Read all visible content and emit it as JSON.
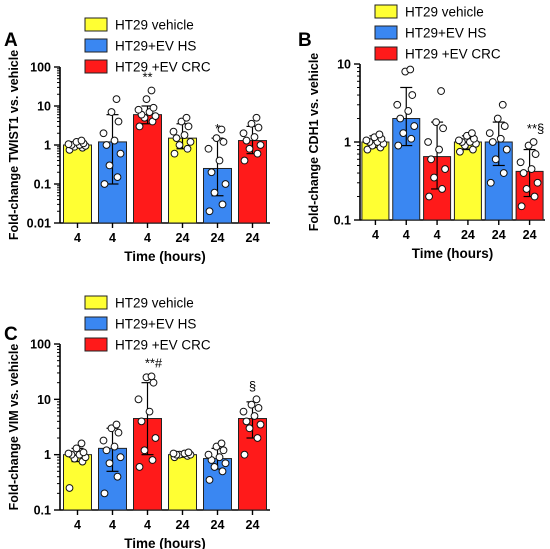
{
  "colors": {
    "yellow": "#ffff33",
    "blue": "#3a87f2",
    "red": "#ff1a1a"
  },
  "chart_data": [
    {
      "panel": "A",
      "type": "bar",
      "scale": "log",
      "ylabel": "Fold-change TWIST1 vs. vehicle",
      "xlabel": "Time (hours)",
      "ylim": [
        0.01,
        100
      ],
      "yticks": [
        {
          "value": 0.01,
          "label": "0.01"
        },
        {
          "value": 0.1,
          "label": "0.1"
        },
        {
          "value": 1,
          "label": "1"
        },
        {
          "value": 10,
          "label": "10"
        },
        {
          "value": 100,
          "label": "100"
        }
      ],
      "legend": [
        "HT29 vehicle",
        "HT29+EV HS",
        "HT29 +EV CRC"
      ],
      "legend_position": "top",
      "bars": [
        {
          "category": "4",
          "group": 0,
          "value": 1.0,
          "err": [
            0.85,
            1.2
          ],
          "annotation": "",
          "points": [
            0.75,
            0.85,
            0.9,
            0.95,
            1.0,
            1.0,
            1.05,
            1.1,
            1.2,
            1.3
          ]
        },
        {
          "category": "4",
          "group": 1,
          "value": 1.2,
          "err": [
            0.1,
            6.0
          ],
          "annotation": "",
          "points": [
            0.1,
            0.15,
            0.3,
            0.6,
            1.0,
            1.3,
            2.0,
            4.0,
            7.0,
            15
          ]
        },
        {
          "category": "4",
          "group": 2,
          "value": 6.0,
          "err": [
            3.5,
            10.0
          ],
          "annotation": "**",
          "points": [
            3.0,
            4.0,
            5.0,
            5.5,
            6.0,
            7.0,
            8.0,
            9.0,
            15,
            25
          ]
        },
        {
          "category": "24",
          "group": 0,
          "value": 1.5,
          "err": [
            0.8,
            3.5
          ],
          "annotation": "",
          "points": [
            0.6,
            0.8,
            1.0,
            1.2,
            1.5,
            1.8,
            2.2,
            3.0,
            4.0,
            5.0
          ]
        },
        {
          "category": "24",
          "group": 1,
          "value": 0.25,
          "err": [
            0.05,
            1.5
          ],
          "annotation": "*",
          "points": [
            0.02,
            0.03,
            0.06,
            0.1,
            0.2,
            0.4,
            0.8,
            1.2,
            1.5,
            2.5
          ]
        },
        {
          "category": "24",
          "group": 2,
          "value": 1.3,
          "err": [
            0.6,
            3.0
          ],
          "annotation": "",
          "points": [
            0.4,
            0.6,
            0.8,
            1.0,
            1.3,
            1.6,
            2.0,
            2.8,
            3.5,
            5.0
          ]
        }
      ]
    },
    {
      "panel": "B",
      "type": "bar",
      "scale": "log",
      "ylabel": "Fold-change CDH1 vs. vehicle",
      "xlabel": "Time (hours)",
      "ylim": [
        0.1,
        10
      ],
      "yticks": [
        {
          "value": 0.1,
          "label": "0.1"
        },
        {
          "value": 1,
          "label": "1"
        },
        {
          "value": 10,
          "label": "10"
        }
      ],
      "legend": [
        "HT29 vehicle",
        "HT29+EV HS",
        "HT29 +EV CRC"
      ],
      "legend_position": "top",
      "bars": [
        {
          "category": "4",
          "group": 0,
          "value": 1.0,
          "err": [
            0.85,
            1.2
          ],
          "annotation": "",
          "points": [
            0.8,
            0.85,
            0.9,
            0.95,
            1.0,
            1.0,
            1.05,
            1.1,
            1.15,
            1.25
          ]
        },
        {
          "category": "4",
          "group": 1,
          "value": 2.0,
          "err": [
            0.9,
            5.0
          ],
          "annotation": "",
          "points": [
            0.9,
            1.1,
            1.3,
            1.6,
            2.0,
            2.5,
            3.0,
            4.0,
            8.0,
            8.5
          ]
        },
        {
          "category": "4",
          "group": 2,
          "value": 0.65,
          "err": [
            0.25,
            1.8
          ],
          "annotation": "",
          "points": [
            0.2,
            0.25,
            0.35,
            0.45,
            0.6,
            0.8,
            1.0,
            1.5,
            1.8,
            4.5
          ]
        },
        {
          "category": "24",
          "group": 0,
          "value": 1.0,
          "err": [
            0.8,
            1.2
          ],
          "annotation": "",
          "points": [
            0.75,
            0.8,
            0.9,
            0.95,
            1.0,
            1.0,
            1.05,
            1.1,
            1.2,
            1.3
          ]
        },
        {
          "category": "24",
          "group": 1,
          "value": 1.0,
          "err": [
            0.5,
            1.8
          ],
          "annotation": "",
          "points": [
            0.3,
            0.4,
            0.6,
            0.8,
            1.0,
            1.1,
            1.3,
            1.6,
            2.0,
            3.0
          ]
        },
        {
          "category": "24",
          "group": 2,
          "value": 0.42,
          "err": [
            0.2,
            0.8
          ],
          "annotation": "**§",
          "points": [
            0.15,
            0.2,
            0.25,
            0.3,
            0.4,
            0.45,
            0.55,
            0.7,
            0.9,
            1.0
          ]
        }
      ]
    },
    {
      "panel": "C",
      "type": "bar",
      "scale": "log",
      "ylabel": "Fold-change VIM vs. vehicle",
      "xlabel": "Time (hours)",
      "ylim": [
        0.1,
        100
      ],
      "yticks": [
        {
          "value": 0.1,
          "label": "0.1"
        },
        {
          "value": 1,
          "label": "1"
        },
        {
          "value": 10,
          "label": "10"
        },
        {
          "value": 100,
          "label": "100"
        }
      ],
      "legend": [
        "HT29 vehicle",
        "HT29+EV HS",
        "HT29 +EV CRC"
      ],
      "legend_position": "top",
      "bars": [
        {
          "category": "4",
          "group": 0,
          "value": 1.0,
          "err": [
            0.75,
            1.3
          ],
          "annotation": "",
          "points": [
            0.25,
            0.75,
            0.85,
            0.9,
            1.0,
            1.0,
            1.05,
            1.1,
            1.3,
            1.6
          ]
        },
        {
          "category": "4",
          "group": 1,
          "value": 1.3,
          "err": [
            0.5,
            3.0
          ],
          "annotation": "",
          "points": [
            0.2,
            0.4,
            0.7,
            0.9,
            1.2,
            1.4,
            1.8,
            2.5,
            3.0,
            3.5
          ]
        },
        {
          "category": "4",
          "group": 2,
          "value": 4.5,
          "err": [
            1.0,
            20.0
          ],
          "annotation": "**#",
          "points": [
            0.6,
            0.8,
            1.2,
            2.0,
            4.0,
            6.0,
            10.0,
            20.0,
            25.0,
            26.0
          ]
        },
        {
          "category": "24",
          "group": 0,
          "value": 1.0,
          "err": [
            0.9,
            1.1
          ],
          "annotation": "",
          "points": [
            0.9,
            0.95,
            1.0,
            1.0,
            1.0,
            1.05,
            1.05,
            1.1
          ]
        },
        {
          "category": "24",
          "group": 1,
          "value": 0.85,
          "err": [
            0.55,
            1.3
          ],
          "annotation": "",
          "points": [
            0.35,
            0.5,
            0.6,
            0.7,
            0.8,
            0.9,
            1.0,
            1.2,
            1.4,
            1.6
          ]
        },
        {
          "category": "24",
          "group": 2,
          "value": 4.5,
          "err": [
            2.0,
            9.0
          ],
          "annotation": "§",
          "points": [
            1.0,
            2.0,
            3.0,
            3.5,
            4.0,
            5.0,
            6.0,
            7.0,
            8.0,
            10.0
          ]
        }
      ]
    }
  ]
}
